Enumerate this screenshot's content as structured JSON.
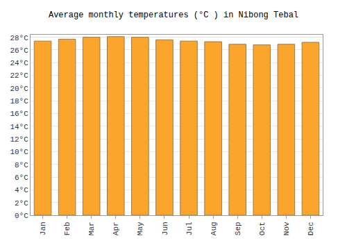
{
  "chart_data": {
    "type": "bar",
    "title": "Average monthly temperatures (°C ) in Nibong Tebal",
    "categories": [
      "Jan",
      "Feb",
      "Mar",
      "Apr",
      "May",
      "Jun",
      "Jul",
      "Aug",
      "Sep",
      "Oct",
      "Nov",
      "Dec"
    ],
    "values": [
      27.4,
      27.7,
      28.0,
      28.1,
      28.0,
      27.6,
      27.4,
      27.3,
      26.9,
      26.8,
      26.9,
      27.2
    ],
    "color": "#fba52d",
    "ylim": [
      0,
      28.4
    ],
    "yticks": [
      {
        "value": 0,
        "label": "0°C"
      },
      {
        "value": 2,
        "label": "2°C"
      },
      {
        "value": 4,
        "label": "4°C"
      },
      {
        "value": 6,
        "label": "6°C"
      },
      {
        "value": 8,
        "label": "8°C"
      },
      {
        "value": 10,
        "label": "10°C"
      },
      {
        "value": 12,
        "label": "12°C"
      },
      {
        "value": 14,
        "label": "14°C"
      },
      {
        "value": 16,
        "label": "16°C"
      },
      {
        "value": 18,
        "label": "18°C"
      },
      {
        "value": 20,
        "label": "20°C"
      },
      {
        "value": 22,
        "label": "22°C"
      },
      {
        "value": 24,
        "label": "24°C"
      },
      {
        "value": 26,
        "label": "26°C"
      },
      {
        "value": 28,
        "label": "28°C"
      }
    ],
    "grid": true
  }
}
